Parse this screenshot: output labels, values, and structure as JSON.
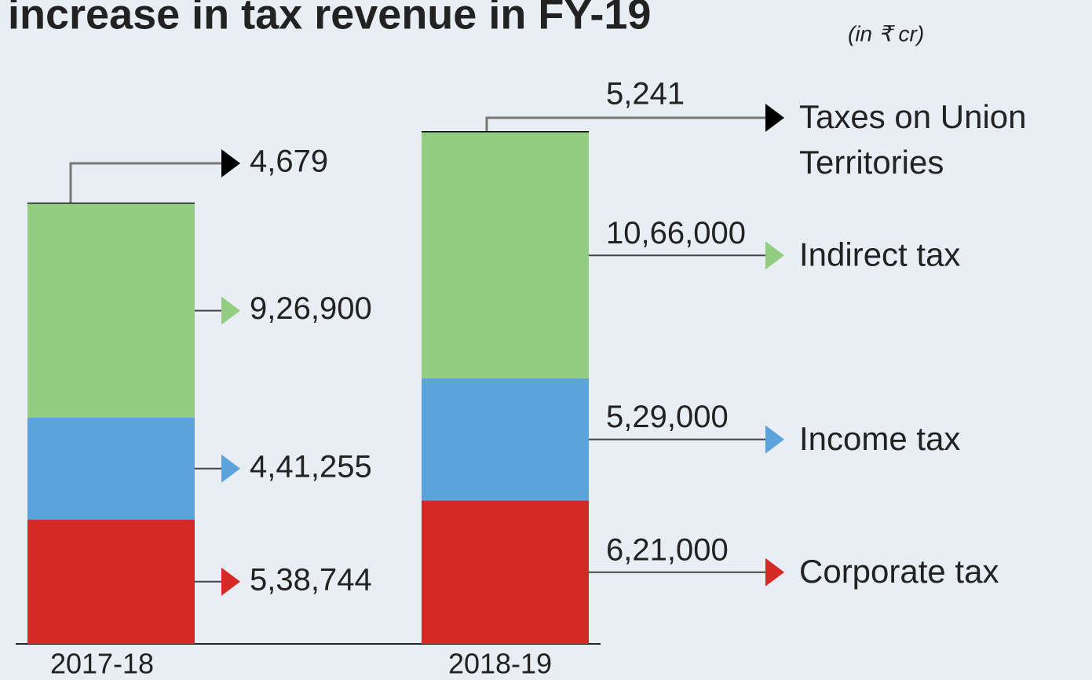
{
  "chart_data": {
    "type": "stacked_bar",
    "title": "increase in tax revenue in FY-19",
    "subtitle": "(in ₹ cr)",
    "categories": [
      "2017-18",
      "2018-19"
    ],
    "series": [
      {
        "name": "Corporate tax",
        "color": "#d42a25",
        "values": [
          538744,
          621000
        ],
        "value_labels": [
          "5,38,744",
          "6,21,000"
        ]
      },
      {
        "name": "Income tax",
        "color": "#5ba3dc",
        "values": [
          441255,
          529000
        ],
        "value_labels": [
          "4,41,255",
          "5,29,000"
        ]
      },
      {
        "name": "Indirect tax",
        "color": "#92cd82",
        "values": [
          926900,
          1066000
        ],
        "value_labels": [
          "9,26,900",
          "10,66,000"
        ]
      },
      {
        "name": "Taxes on Union Territories",
        "color": "#000000",
        "values": [
          4679,
          5241
        ],
        "value_labels": [
          "4,679",
          "5,241"
        ]
      }
    ]
  }
}
